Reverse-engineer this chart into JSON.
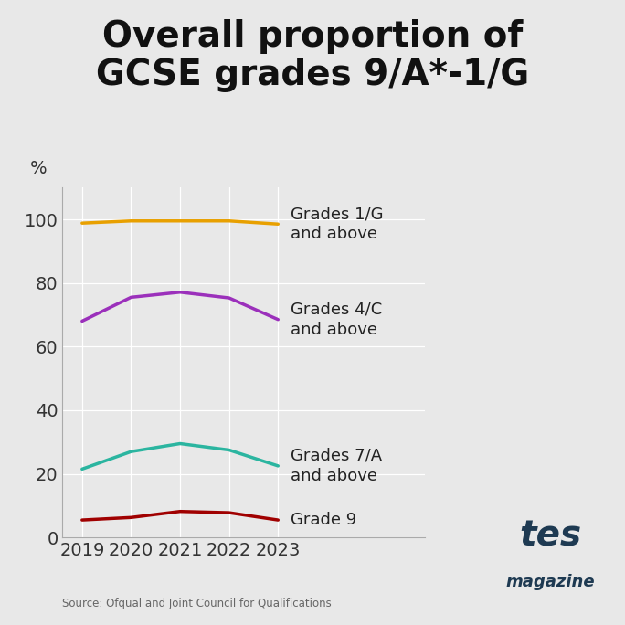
{
  "title": "Overall proportion of\nGCSE grades 9/A*-1/G",
  "years": [
    2019,
    2020,
    2021,
    2022,
    2023
  ],
  "series": [
    {
      "label": "Grades 1/G\nand above",
      "values": [
        98.8,
        99.5,
        99.5,
        99.5,
        98.5
      ],
      "color": "#E8A000",
      "label_yoffset": 0
    },
    {
      "label": "Grades 4/C\nand above",
      "values": [
        68.0,
        75.5,
        77.1,
        75.3,
        68.5
      ],
      "color": "#9B30BB",
      "label_yoffset": 0
    },
    {
      "label": "Grades 7/A\nand above",
      "values": [
        21.5,
        27.0,
        29.5,
        27.5,
        22.5
      ],
      "color": "#2BB5A0",
      "label_yoffset": 0
    },
    {
      "label": "Grade 9",
      "values": [
        5.5,
        6.3,
        8.2,
        7.8,
        5.5
      ],
      "color": "#A00000",
      "label_yoffset": 0
    }
  ],
  "ylabel": "%",
  "ylim": [
    0,
    110
  ],
  "yticks": [
    0,
    20,
    40,
    60,
    80,
    100
  ],
  "background_color": "#E8E8E8",
  "title_fontsize": 28,
  "axis_fontsize": 14,
  "label_fontsize": 13,
  "source_text": "Source: Ofqual and Joint Council for Qualifications",
  "line_width": 2.5,
  "tes_color": "#1e3a52"
}
